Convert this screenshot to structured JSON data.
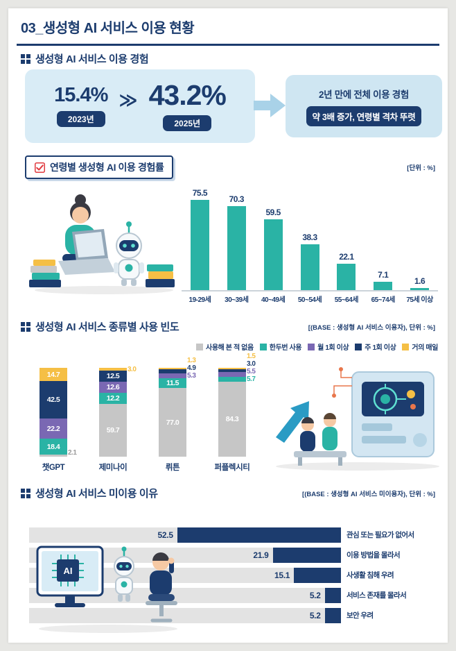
{
  "header": {
    "title": "03_생성형 AI 서비스 이용 현황"
  },
  "palette": {
    "navy": "#1c3c6e",
    "teal": "#2ab3a5",
    "purple": "#7a68b3",
    "yellow": "#f5bf45",
    "gray": "#c6c6c6",
    "panelBlue": "#d9ecf6",
    "calloutBlue": "#cfe6f2",
    "arrowBlue": "#a9d2e8",
    "red": "#e0393e",
    "track": "#e3e3e3"
  },
  "sections": {
    "experience": {
      "title": "생성형 AI 서비스 이용 경험",
      "before_value": "15.4%",
      "before_year": "2023년",
      "arrow_glyph": "≫",
      "after_value": "43.2%",
      "after_year": "2025년",
      "callout_line1": "2년 만에 전체 이용 경험",
      "callout_line2": "약 3배 증가, 연령별 격차 뚜렷"
    }
  },
  "chart_data": [
    {
      "type": "bar",
      "title": "연령별 생성형 AI 이용 경험률",
      "unit": "[단위 : %]",
      "categories": [
        "19-29세",
        "30~39세",
        "40~49세",
        "50~54세",
        "55~64세",
        "65~74세",
        "75세 이상"
      ],
      "values": [
        75.5,
        70.3,
        59.5,
        38.3,
        22.1,
        7.1,
        1.6
      ],
      "bar_color": "#2ab3a5",
      "ylim": [
        0,
        100
      ],
      "grid": false
    },
    {
      "type": "bar",
      "subtype": "stacked-100",
      "title": "생성형 AI 서비스 종류별 사용 빈도",
      "base_note": "[(BASE : 생성형 AI 서비스 이용자), 단위 : %]",
      "categories": [
        "챗GPT",
        "제미나이",
        "뤼튼",
        "퍼플렉시티"
      ],
      "series": [
        {
          "name": "사용해 본 적 없음",
          "color": "#c6c6c6",
          "label_color": "#9a9a9a",
          "values": [
            2.1,
            59.7,
            77.0,
            84.3
          ]
        },
        {
          "name": "한두번 사용",
          "color": "#2ab3a5",
          "values": [
            18.4,
            12.2,
            11.5,
            5.7
          ]
        },
        {
          "name": "월 1회 이상",
          "color": "#7a68b3",
          "values": [
            22.2,
            12.6,
            5.3,
            5.5
          ]
        },
        {
          "name": "주 1회 이상",
          "color": "#1c3c6e",
          "values": [
            42.5,
            12.5,
            4.9,
            3.0
          ]
        },
        {
          "name": "거의 매일",
          "color": "#f5bf45",
          "values": [
            14.7,
            3.0,
            1.3,
            1.5
          ]
        }
      ],
      "legend_position": "top-right",
      "ylim": [
        0,
        100
      ]
    },
    {
      "type": "bar",
      "subtype": "horizontal",
      "title": "생성형 AI 서비스 미이용 이유",
      "base_note": "[(BASE : 생성형 AI 서비스 미이용자), 단위 : %]",
      "categories": [
        "관심 또는 필요가 없어서",
        "이용 방법을 몰라서",
        "사생활 침해 우려",
        "서비스 존재를 몰라서",
        "보안 우려"
      ],
      "values": [
        52.5,
        21.9,
        15.1,
        5.2,
        5.2
      ],
      "bar_color": "#1c3c6e",
      "track_color": "#e3e3e3",
      "xlim": [
        0,
        100
      ]
    }
  ]
}
